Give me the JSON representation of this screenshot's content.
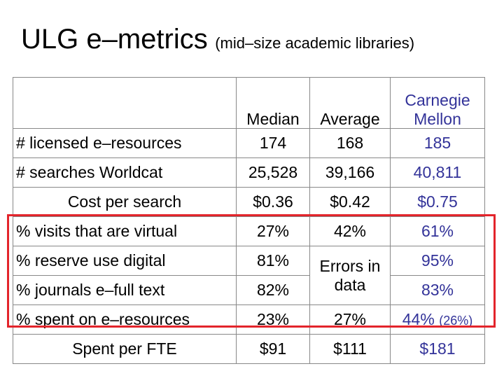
{
  "title": {
    "main": "ULG e–metrics",
    "sub": "(mid–size academic libraries)"
  },
  "table": {
    "headers": [
      "",
      "Median",
      "Average",
      "Carnegie Mellon"
    ],
    "rows": [
      {
        "label": "# licensed e–resources",
        "median": "174",
        "average": "168",
        "cmu": "185"
      },
      {
        "label": "# searches Worldcat",
        "median": "25,528",
        "average": "39,166",
        "cmu": "40,811"
      },
      {
        "label": "Cost per search",
        "median": "$0.36",
        "average": "$0.42",
        "cmu": "$0.75"
      },
      {
        "label": "% visits that are virtual",
        "median": "27%",
        "average": "42%",
        "cmu": "61%"
      },
      {
        "label": "% reserve use digital",
        "median": "81%",
        "average": "Errors in data",
        "cmu": "95%"
      },
      {
        "label": "% journals e–full text",
        "median": "82%",
        "average": "",
        "cmu": "83%"
      },
      {
        "label": "% spent on e–resources",
        "median": "23%",
        "average": "27%",
        "cmu": "44%",
        "cmu_note": "(26%)"
      },
      {
        "label": "Spent per FTE",
        "median": "$91",
        "average": "$111",
        "cmu": "$181"
      }
    ]
  },
  "colors": {
    "cmu_text": "#333399",
    "highlight_border": "#e3242b",
    "grid": "#888888"
  }
}
